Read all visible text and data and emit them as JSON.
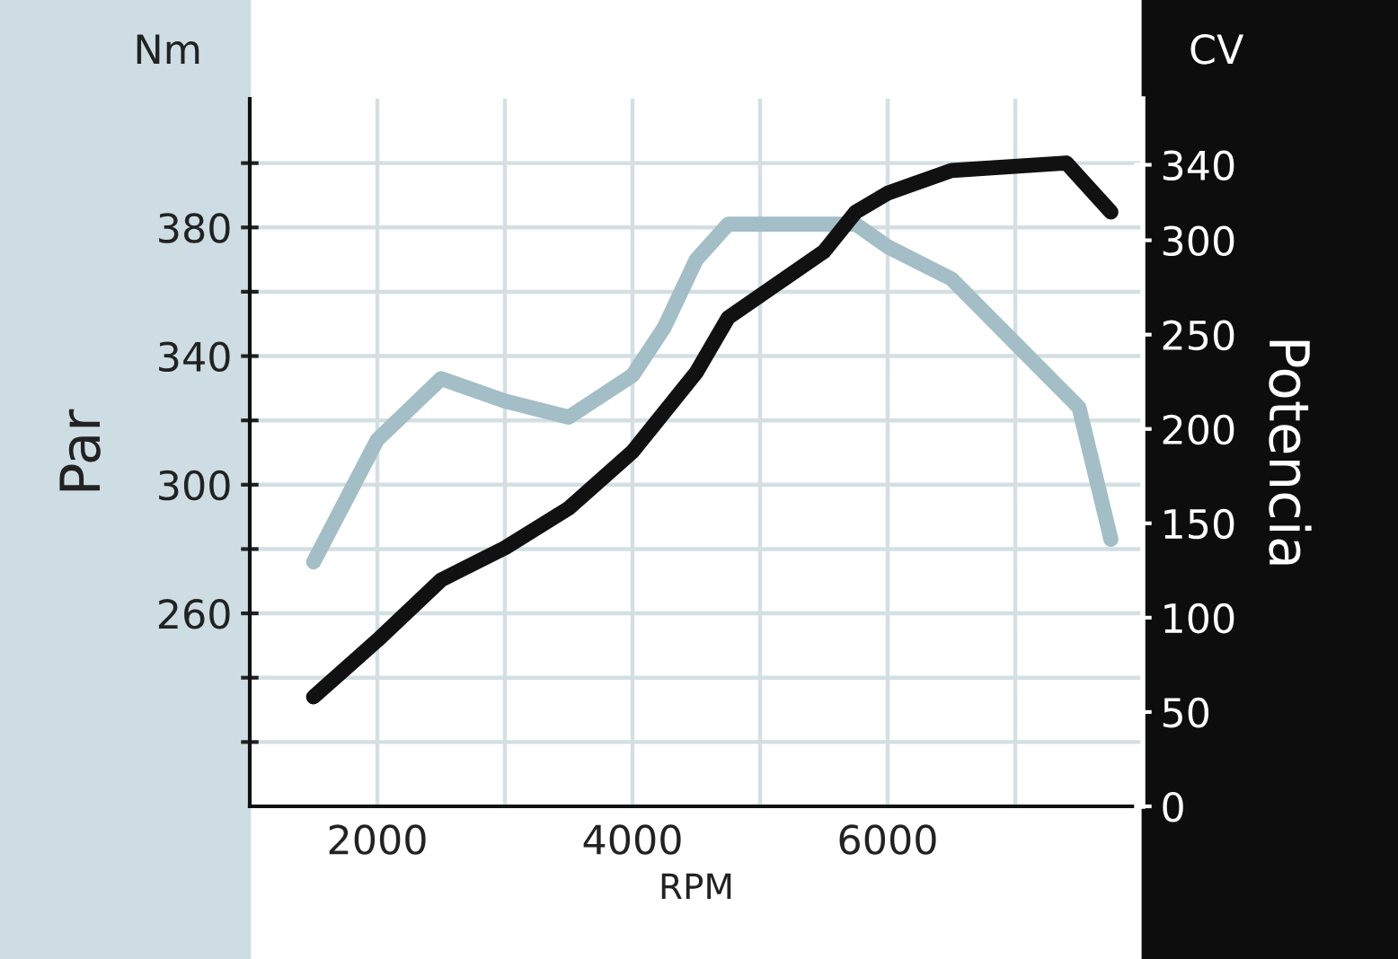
{
  "chart_data": {
    "type": "line",
    "xlabel": "RPM",
    "ylabel": "Par",
    "y2label": "Potencia",
    "annotations": [
      "Nm",
      "CV"
    ],
    "xlim": [
      1000,
      8000
    ],
    "xticks": [
      2000,
      {
        "value": 3000,
        "label": null
      },
      4000,
      {
        "value": 5000,
        "label": null
      },
      6000,
      {
        "value": 7000,
        "label": null
      }
    ],
    "ylim": [
      200,
      420
    ],
    "yticks": [
      {
        "value": 220,
        "label": null
      },
      {
        "value": 240,
        "label": null
      },
      260,
      {
        "value": 280,
        "label": null
      },
      300,
      {
        "value": 320,
        "label": null
      },
      340,
      {
        "value": 360,
        "label": null
      },
      380,
      {
        "value": 400,
        "label": null
      }
    ],
    "y2lim": [
      0,
      375
    ],
    "y2ticks": [
      0,
      50,
      100,
      150,
      200,
      250,
      300,
      340
    ],
    "grid": true,
    "legend": false,
    "marker": "none",
    "line_style": "solid",
    "series": [
      {
        "color": "#a3bec6",
        "x": [
          1500,
          2000,
          2500,
          3000,
          3500,
          4000,
          4250,
          4500,
          4750,
          5750,
          6000,
          6500,
          7500,
          7750
        ],
        "values": [
          276,
          314,
          333,
          326,
          321,
          334,
          349,
          370,
          381,
          381,
          374,
          364,
          324,
          283
        ]
      },
      {
        "color": "#111111",
        "axis": "y2",
        "x": [
          1500,
          2000,
          2500,
          3000,
          3500,
          4000,
          4500,
          4750,
          5500,
          5750,
          6000,
          6500,
          7400,
          7750
        ],
        "values": [
          58,
          88,
          120,
          137,
          158,
          188,
          230,
          259,
          294,
          315,
          325,
          337,
          341,
          315
        ]
      }
    ]
  }
}
